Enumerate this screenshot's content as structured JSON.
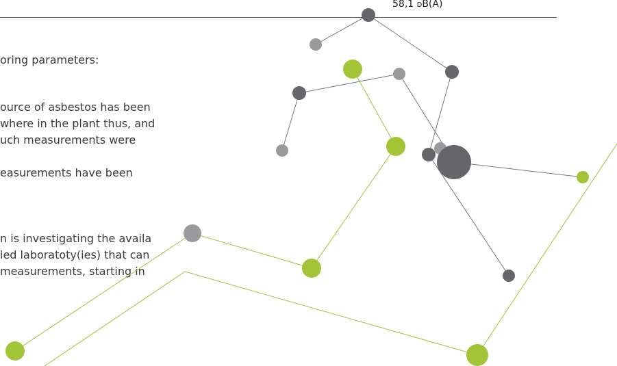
{
  "header": {
    "level": "58,1 dB(A)"
  },
  "body": {
    "lines": [
      "oring parameters:",
      "ource of asbestos has been",
      "where in the plant thus, and",
      "uch measurements were",
      "easurements have been",
      "n is investigating the availa",
      "ied laboratoty(ies) that can",
      "measurements, starting in"
    ]
  }
}
